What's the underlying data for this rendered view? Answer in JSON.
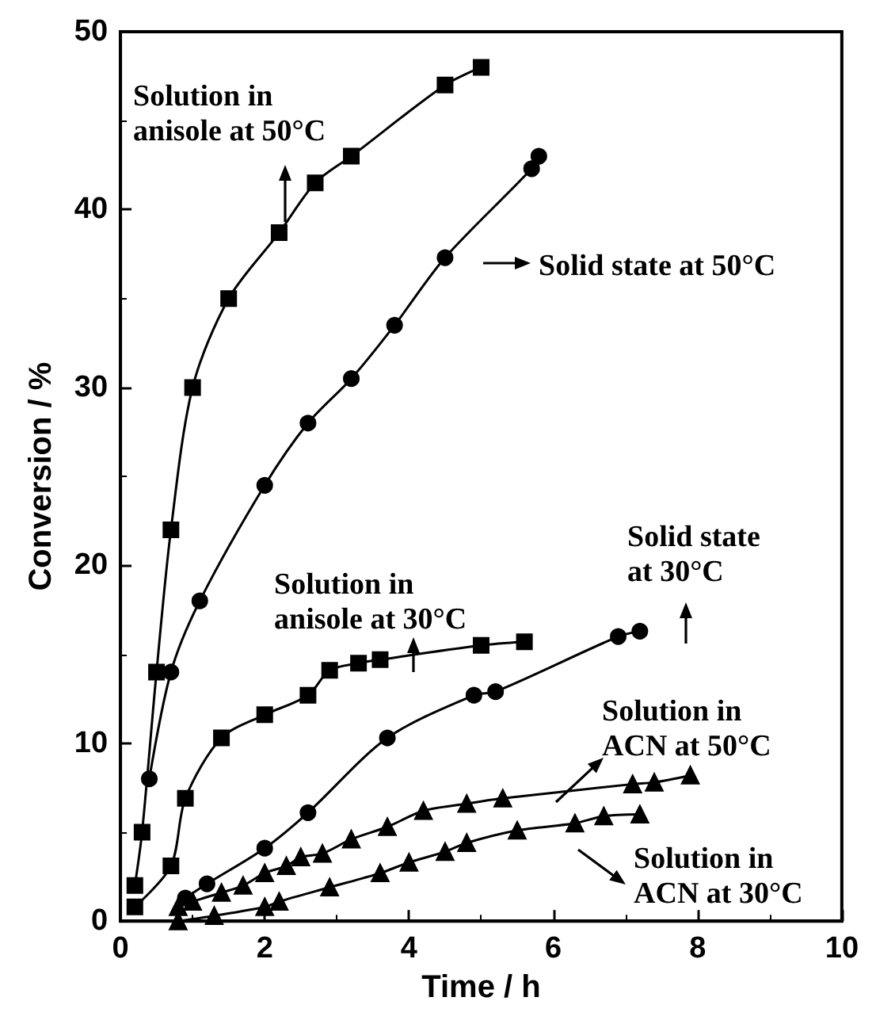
{
  "chart_data": {
    "type": "line",
    "xlabel": "Time / h",
    "ylabel": "Conversion / %",
    "xlim": [
      0,
      10
    ],
    "xticks": [
      0,
      2,
      4,
      6,
      8,
      10
    ],
    "ylim": [
      0,
      50
    ],
    "yticks": [
      0,
      10,
      20,
      30,
      40,
      50
    ],
    "grid": false,
    "line_style": "solid",
    "series": [
      {
        "color": "#000000",
        "marker": "square",
        "x": [
          0.2,
          0.3,
          0.5,
          0.7,
          1.0,
          1.5,
          2.2,
          2.7,
          3.2,
          4.5,
          5.0
        ],
        "values": [
          2,
          5,
          14,
          22,
          30,
          35,
          38.7,
          41.5,
          43,
          47,
          48
        ]
      },
      {
        "color": "#000000",
        "marker": "circle",
        "x": [
          0.4,
          0.7,
          1.1,
          2.0,
          2.6,
          3.2,
          3.8,
          4.5,
          5.7,
          5.8
        ],
        "values": [
          8,
          14,
          18,
          24.5,
          28,
          30.5,
          33.5,
          37.3,
          42.3,
          43
        ]
      },
      {
        "color": "#000000",
        "marker": "square",
        "x": [
          0.2,
          0.7,
          0.9,
          1.4,
          2.0,
          2.6,
          2.9,
          3.3,
          3.6,
          5.0,
          5.6
        ],
        "values": [
          0.8,
          3.1,
          6.9,
          10.3,
          11.6,
          12.7,
          14.1,
          14.5,
          14.7,
          15.5,
          15.7
        ]
      },
      {
        "color": "#000000",
        "marker": "circle",
        "x": [
          0.9,
          1.2,
          2.0,
          2.6,
          3.7,
          4.9,
          5.2,
          6.9,
          7.2
        ],
        "values": [
          1.3,
          2.1,
          4.1,
          6.1,
          10.3,
          12.7,
          12.9,
          16.0,
          16.3
        ]
      },
      {
        "color": "#000000",
        "marker": "triangle",
        "x": [
          0.8,
          1.0,
          1.4,
          1.7,
          2.0,
          2.3,
          2.5,
          2.8,
          3.2,
          3.7,
          4.2,
          4.8,
          5.3,
          7.1,
          7.4,
          7.9
        ],
        "values": [
          0.8,
          1.1,
          1.6,
          2.0,
          2.7,
          3.1,
          3.6,
          3.8,
          4.6,
          5.3,
          6.2,
          6.6,
          6.9,
          7.7,
          7.8,
          8.2
        ]
      },
      {
        "color": "#000000",
        "marker": "triangle",
        "x": [
          0.8,
          1.3,
          2.0,
          2.2,
          2.9,
          3.6,
          4.0,
          4.5,
          4.8,
          5.5,
          6.3,
          6.7,
          7.2
        ],
        "values": [
          0,
          0.3,
          0.8,
          1.1,
          1.9,
          2.7,
          3.3,
          3.9,
          4.4,
          5.1,
          5.5,
          5.9,
          6.0
        ]
      }
    ],
    "annotations": [
      "Solution in\nanisole at 50°C",
      "Solid state at 50°C",
      "Solution in\nanisole at 30°C",
      "Solid state\nat 30°C",
      "Solution in\nACN at 50°C",
      "Solution in\nACN at 30°C"
    ]
  }
}
